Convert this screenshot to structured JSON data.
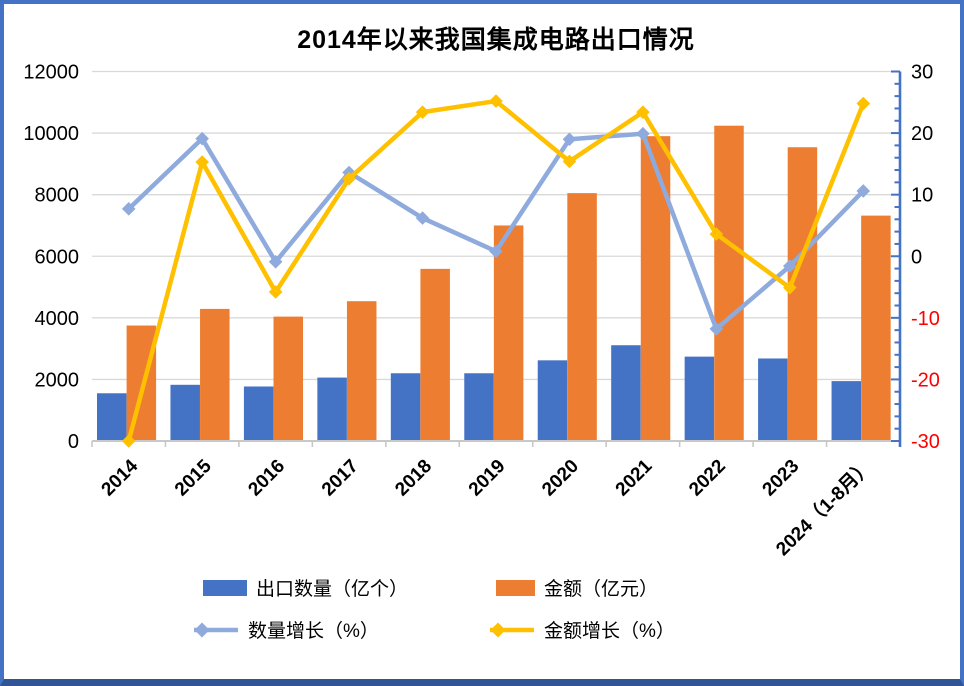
{
  "page": {
    "background": "#FFFFFF",
    "border_color": "#4472C4",
    "border_bottom_color": "#2F5597"
  },
  "chart_data": {
    "type": "bar",
    "subtype": "combo clustered-bar + line, dual y-axis",
    "title": "2014年以来我国集成电路出口情况",
    "categories": [
      "2014",
      "2015",
      "2016",
      "2017",
      "2018",
      "2019",
      "2020",
      "2021",
      "2022",
      "2023",
      "2024（1-8月）"
    ],
    "series": [
      {
        "name": "出口数量（亿个）",
        "type": "bar",
        "axis": "left",
        "color": "#4472C4",
        "values": [
          1550,
          1825,
          1770,
          2060,
          2200,
          2200,
          2620,
          3110,
          2740,
          2680,
          1945
        ]
      },
      {
        "name": "金额（亿元）",
        "type": "bar",
        "axis": "left",
        "color": "#ED7D31",
        "values": [
          3750,
          4290,
          4040,
          4540,
          5590,
          7000,
          8050,
          9900,
          10240,
          9540,
          7320
        ]
      },
      {
        "name": "数量增长（%）",
        "type": "line",
        "axis": "right",
        "color": "#8FAADC",
        "marker": "diamond",
        "values": [
          7.7,
          19.1,
          -0.9,
          13.6,
          6.2,
          0.8,
          19.0,
          19.9,
          -11.8,
          -1.6,
          10.6
        ]
      },
      {
        "name": "金额增长（%）",
        "type": "line",
        "axis": "right",
        "color": "#FFC000",
        "marker": "diamond",
        "values": [
          -30,
          15.3,
          -5.8,
          12.6,
          23.4,
          25.2,
          15.4,
          23.4,
          3.6,
          -5.1,
          24.8
        ]
      }
    ],
    "left_axis": {
      "min": 0,
      "max": 12000,
      "major_step": 2000,
      "tick_labels": [
        "0",
        "2000",
        "4000",
        "6000",
        "8000",
        "10000",
        "12000"
      ],
      "label_color": "#000000"
    },
    "right_axis": {
      "min": -30,
      "max": 30,
      "major_step": 10,
      "minor_step": 2,
      "tick_labels": [
        "-30",
        "-20",
        "-10",
        "0",
        "10",
        "20",
        "30"
      ],
      "label_color": "#000000",
      "negative_label_color": "#FF0000",
      "axis_color": "#4472C4"
    },
    "grid": true,
    "gridline_color": "#D9D9D9",
    "x_axis_color": "#C8C8C8",
    "legend_position": "bottom"
  }
}
